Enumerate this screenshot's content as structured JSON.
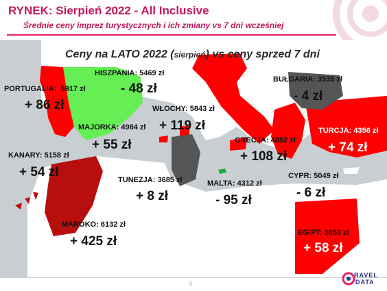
{
  "header": {
    "title": "RYNEK: Sierpień 2022 - All Inclusive",
    "subtitle": "Średnie ceny imprez turystycznych i ich zmiany vs 7 dni wcześniej"
  },
  "map_heading": {
    "main_before": "Ceny na LATO 2022 (",
    "main_small": "sierpień",
    "main_after": ") vs ceny sprzed 7 dni"
  },
  "destinations": [
    {
      "name": "PORTUGALIA:",
      "price": "5917 zł",
      "change": "+ 86 zł",
      "color": "#ff0000"
    },
    {
      "name": "HISZPANIA:",
      "price": "5469 zł",
      "change": "- 48 zł",
      "color": "#66ee55"
    },
    {
      "name": "WŁOCHY:",
      "price": "5843 zł",
      "change": "+ 119 zł",
      "color": "#ff0000"
    },
    {
      "name": "MAJORKA:",
      "price": "4984 zł",
      "change": "+ 55 zł",
      "color": "#ff0000"
    },
    {
      "name": "BUŁGARIA:",
      "price": "3535 zł",
      "change": "- 4 zł",
      "color": "#555555"
    },
    {
      "name": "TURCJA:",
      "price": "4356 zł",
      "change": "+ 74 zł",
      "color": "#ff0000"
    },
    {
      "name": "GRECJA:",
      "price": "4852 zł",
      "change": "+ 108 zł",
      "color": "#ff0000"
    },
    {
      "name": "KANARY:",
      "price": "5158 zł",
      "change": "+ 54 zł",
      "color": "#cc1111"
    },
    {
      "name": "TUNEZJA:",
      "price": "3685 zł",
      "change": "+ 8 zł",
      "color": "#555555"
    },
    {
      "name": "MALTA:",
      "price": "4312 zł",
      "change": "- 95 zł",
      "color": "#22aa44"
    },
    {
      "name": "CYPR:",
      "price": "5049 zł",
      "change": "- 6 zł",
      "color": "#ffffff"
    },
    {
      "name": "MAROKO:",
      "price": "6132 zł",
      "change": "+ 425 zł",
      "color": "#b80e0e"
    },
    {
      "name": "EGIPT:",
      "price": "3853 zł",
      "change": "+ 58 zł",
      "color": "#ff0000"
    }
  ],
  "footer": {
    "page_number": "5",
    "logo_line1": "RAVEL",
    "logo_line2": "DATA"
  },
  "colors": {
    "accent": "#c2185b",
    "increase": "#ff0000",
    "decrease": "#66ee55",
    "neutral": "#555555",
    "sea": "#c9ced3",
    "land": "#ffffff"
  }
}
